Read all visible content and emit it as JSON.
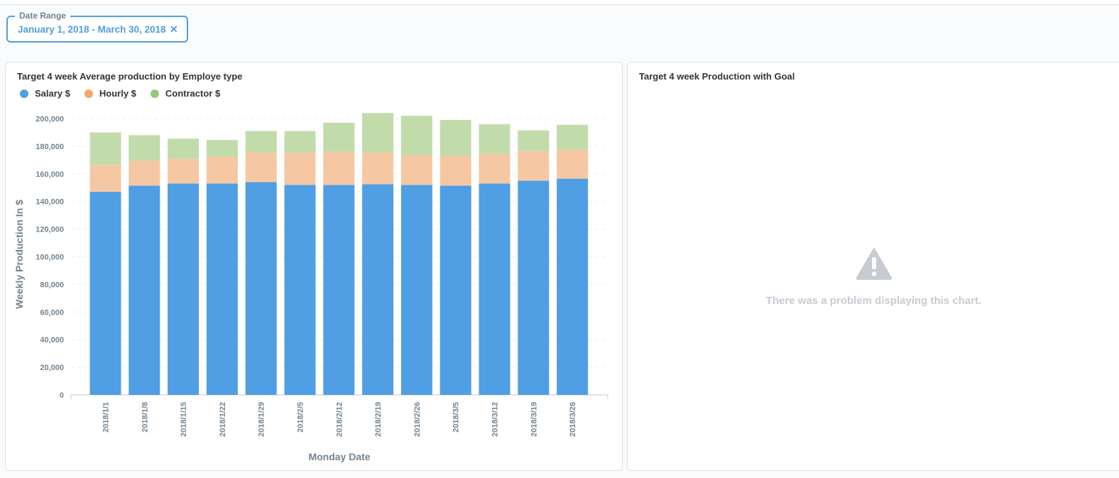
{
  "filter": {
    "legend": "Date Range",
    "value": "January 1, 2018 - March 30, 2018",
    "clear_icon": "close-icon"
  },
  "card1": {
    "title": "Target 4 week Average production by Employe type",
    "legend": [
      {
        "label": "Salary $",
        "color": "#509ee3"
      },
      {
        "label": "Hourly $",
        "color": "#f5c8a3"
      },
      {
        "label": "Contractor $",
        "color": "#a4cf85"
      }
    ]
  },
  "card2": {
    "title": "Target 4 week Production with Goal",
    "error_icon": "warning-icon",
    "error_message": "There was a problem displaying this chart."
  },
  "chart_data": {
    "type": "bar",
    "stacked": true,
    "categories": [
      "2018/1/1",
      "2018/1/8",
      "2018/1/15",
      "2018/1/22",
      "2018/1/29",
      "2018/2/5",
      "2018/2/12",
      "2018/2/19",
      "2018/2/26",
      "2018/3/5",
      "2018/3/12",
      "2018/3/19",
      "2018/3/26"
    ],
    "series": [
      {
        "name": "Salary $",
        "color": "#509ee3",
        "values": [
          147000,
          151500,
          153000,
          153000,
          154000,
          152000,
          152000,
          152500,
          152000,
          151500,
          153000,
          155000,
          156500
        ]
      },
      {
        "name": "Hourly $",
        "color": "#f5c8a3",
        "values": [
          19500,
          18000,
          18000,
          19500,
          21500,
          23500,
          24000,
          23000,
          21500,
          21500,
          21500,
          21500,
          21000
        ]
      },
      {
        "name": "Contractor $",
        "color": "#c2dbab",
        "values": [
          23500,
          18500,
          14500,
          12000,
          15500,
          15500,
          21000,
          28500,
          28500,
          26000,
          21500,
          15000,
          18000
        ]
      }
    ],
    "xlabel": "Monday Date",
    "ylabel": "Weekly Production In $",
    "ylim": [
      0,
      200000
    ],
    "yticks": [
      0,
      20000,
      40000,
      60000,
      80000,
      100000,
      120000,
      140000,
      160000,
      180000,
      200000
    ],
    "ytick_labels": [
      "0",
      "20,000",
      "40,000",
      "60,000",
      "80,000",
      "100,000",
      "120,000",
      "140,000",
      "160,000",
      "180,000",
      "200,000"
    ],
    "grid": true,
    "legend_position": "top-left"
  }
}
